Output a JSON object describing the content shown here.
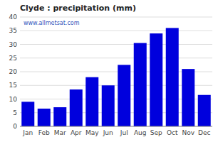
{
  "chart_data": {
    "type": "bar",
    "title": "Clyde : precipitation (mm)",
    "categories": [
      "Jan",
      "Feb",
      "Mar",
      "Apr",
      "May",
      "Jun",
      "Jul",
      "Aug",
      "Sep",
      "Oct",
      "Nov",
      "Dec"
    ],
    "values": [
      9,
      6.5,
      7,
      13.5,
      18,
      15,
      22.5,
      30.5,
      34,
      36,
      21,
      11.5
    ],
    "color": "#0000dd",
    "ylim": [
      0,
      40
    ],
    "yticks": [
      0,
      5,
      10,
      15,
      20,
      25,
      30,
      35,
      40
    ],
    "grid": true,
    "annotations": [
      "www.allmetsat.com"
    ]
  }
}
